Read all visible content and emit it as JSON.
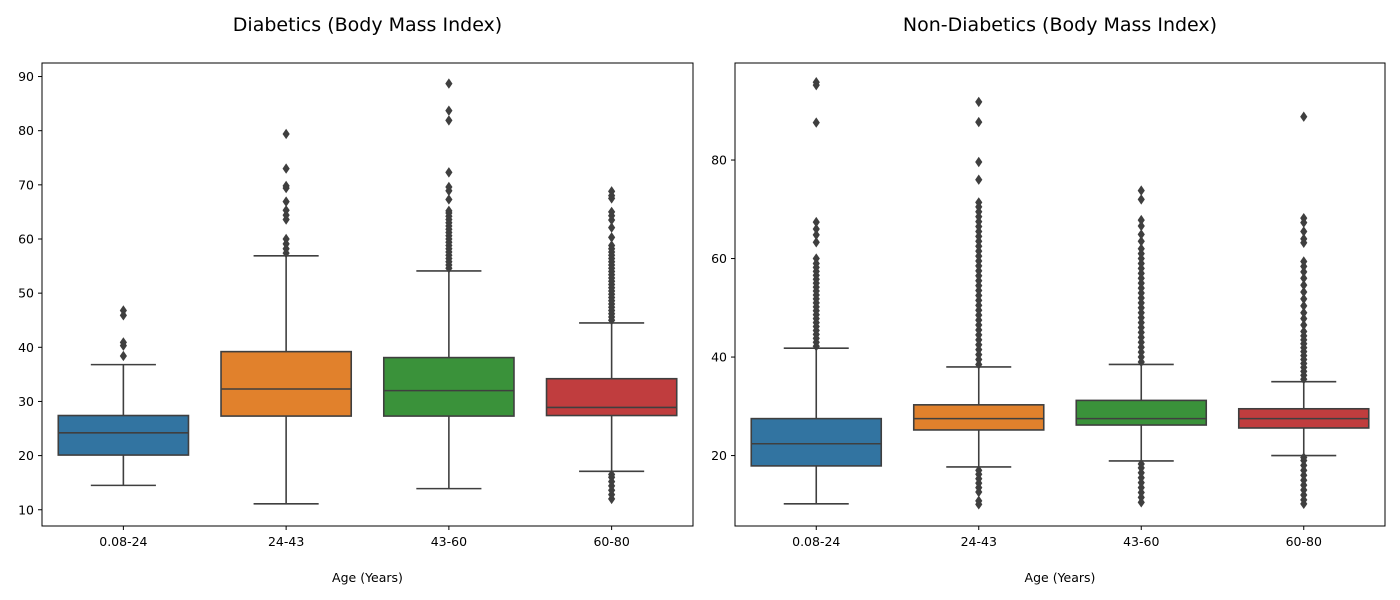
{
  "chart_data": [
    {
      "type": "box",
      "title": "Diabetics (Body Mass Index)",
      "xlabel": "Age (Years)",
      "ylabel": "",
      "categories": [
        "0.08-24",
        "24-43",
        "43-60",
        "60-80"
      ],
      "ylim": [
        7,
        92.5
      ],
      "yticks": [
        10,
        20,
        30,
        40,
        50,
        60,
        70,
        80,
        90
      ],
      "boxes": [
        {
          "category": "0.08-24",
          "color": "#3274a1",
          "q1": 20.1,
          "median": 24.2,
          "q3": 27.4,
          "whisker_low": 14.5,
          "whisker_high": 36.8,
          "outliers": [
            38.4,
            40.3,
            40.9,
            45.9,
            46.8
          ]
        },
        {
          "category": "24-43",
          "color": "#e1812c",
          "q1": 27.3,
          "median": 32.3,
          "q3": 39.2,
          "whisker_low": 11.1,
          "whisker_high": 56.9,
          "outliers": [
            57.4,
            58.2,
            59.1,
            60.0,
            63.6,
            64.4,
            65.3,
            66.9,
            69.4,
            69.8,
            73.0,
            79.4
          ]
        },
        {
          "category": "43-60",
          "color": "#3a923a",
          "q1": 27.3,
          "median": 32.0,
          "q3": 38.1,
          "whisker_low": 13.9,
          "whisker_high": 54.1,
          "outliers": [
            54.6,
            55.2,
            55.8,
            56.4,
            57.0,
            57.6,
            58.2,
            58.8,
            59.4,
            60.0,
            60.6,
            61.2,
            61.8,
            62.4,
            63.0,
            63.6,
            64.2,
            64.8,
            65.2,
            67.3,
            68.9,
            69.6,
            72.3,
            81.9,
            83.7,
            88.7
          ]
        },
        {
          "category": "60-80",
          "color": "#c03d3e",
          "q1": 27.4,
          "median": 28.9,
          "q3": 34.2,
          "whisker_low": 17.1,
          "whisker_high": 44.5,
          "outliers": [
            12.0,
            12.8,
            13.6,
            14.4,
            15.2,
            16.0,
            16.5,
            45.0,
            45.6,
            46.2,
            46.8,
            47.4,
            48.0,
            48.6,
            49.2,
            49.8,
            50.4,
            51.0,
            51.6,
            52.2,
            52.8,
            53.4,
            54.0,
            54.6,
            55.2,
            55.8,
            56.4,
            57.0,
            57.6,
            58.2,
            58.8,
            60.3,
            62.1,
            63.5,
            64.3,
            65.0,
            67.5,
            68.0,
            68.8
          ]
        }
      ]
    },
    {
      "type": "box",
      "title": "Non-Diabetics (Body Mass Index)",
      "xlabel": "Age (Years)",
      "ylabel": "",
      "categories": [
        "0.08-24",
        "24-43",
        "43-60",
        "60-80"
      ],
      "ylim": [
        5.7,
        99.7
      ],
      "yticks": [
        20,
        40,
        60,
        80
      ],
      "boxes": [
        {
          "category": "0.08-24",
          "color": "#3274a1",
          "q1": 17.9,
          "median": 22.4,
          "q3": 27.5,
          "whisker_low": 10.2,
          "whisker_high": 41.8,
          "outliers": [
            42.2,
            43.0,
            43.8,
            44.6,
            45.4,
            46.2,
            47.0,
            47.8,
            48.6,
            49.4,
            50.2,
            51.0,
            51.8,
            52.6,
            53.4,
            54.2,
            55.0,
            55.8,
            56.6,
            57.4,
            58.2,
            59.0,
            60.0,
            63.3,
            64.8,
            66.0,
            67.4,
            87.6,
            95.2,
            95.8
          ]
        },
        {
          "category": "24-43",
          "color": "#e1812c",
          "q1": 25.2,
          "median": 27.5,
          "q3": 30.3,
          "whisker_low": 17.7,
          "whisker_high": 38.0,
          "outliers": [
            10.1,
            10.8,
            12.6,
            13.5,
            14.4,
            15.3,
            16.2,
            17.0,
            38.5,
            39.5,
            40.5,
            41.5,
            42.5,
            43.5,
            44.5,
            45.5,
            46.5,
            47.5,
            48.5,
            49.5,
            50.5,
            51.5,
            52.5,
            53.5,
            54.5,
            55.5,
            56.5,
            57.5,
            58.5,
            59.5,
            60.5,
            61.5,
            62.5,
            63.5,
            64.5,
            65.5,
            66.5,
            67.5,
            68.5,
            69.5,
            70.5,
            71.4,
            76.0,
            79.6,
            87.7,
            91.8
          ]
        },
        {
          "category": "43-60",
          "color": "#3a923a",
          "q1": 26.2,
          "median": 27.5,
          "q3": 31.2,
          "whisker_low": 18.9,
          "whisker_high": 38.5,
          "outliers": [
            10.5,
            11.5,
            12.5,
            13.5,
            14.5,
            15.5,
            16.5,
            17.5,
            18.3,
            39.0,
            40.0,
            41.0,
            42.0,
            43.0,
            44.0,
            45.0,
            46.0,
            47.0,
            48.0,
            49.0,
            50.0,
            51.0,
            52.0,
            53.0,
            54.0,
            55.0,
            56.0,
            57.0,
            58.0,
            59.0,
            60.0,
            61.0,
            62.0,
            63.5,
            64.9,
            66.6,
            67.8,
            72.0,
            73.8
          ]
        },
        {
          "category": "60-80",
          "color": "#c03d3e",
          "q1": 25.6,
          "median": 27.5,
          "q3": 29.5,
          "whisker_low": 20.0,
          "whisker_high": 35.0,
          "outliers": [
            10.2,
            11.0,
            12.0,
            13.0,
            14.0,
            15.0,
            16.0,
            17.0,
            18.0,
            19.0,
            19.6,
            35.5,
            36.3,
            37.1,
            37.9,
            38.7,
            39.5,
            40.3,
            41.1,
            41.9,
            42.7,
            43.5,
            44.3,
            45.2,
            46.5,
            47.8,
            49.0,
            50.4,
            51.8,
            53.2,
            54.6,
            56.0,
            57.3,
            58.4,
            59.4,
            63.2,
            64.0,
            65.5,
            67.3,
            68.2,
            88.8
          ]
        }
      ]
    }
  ]
}
